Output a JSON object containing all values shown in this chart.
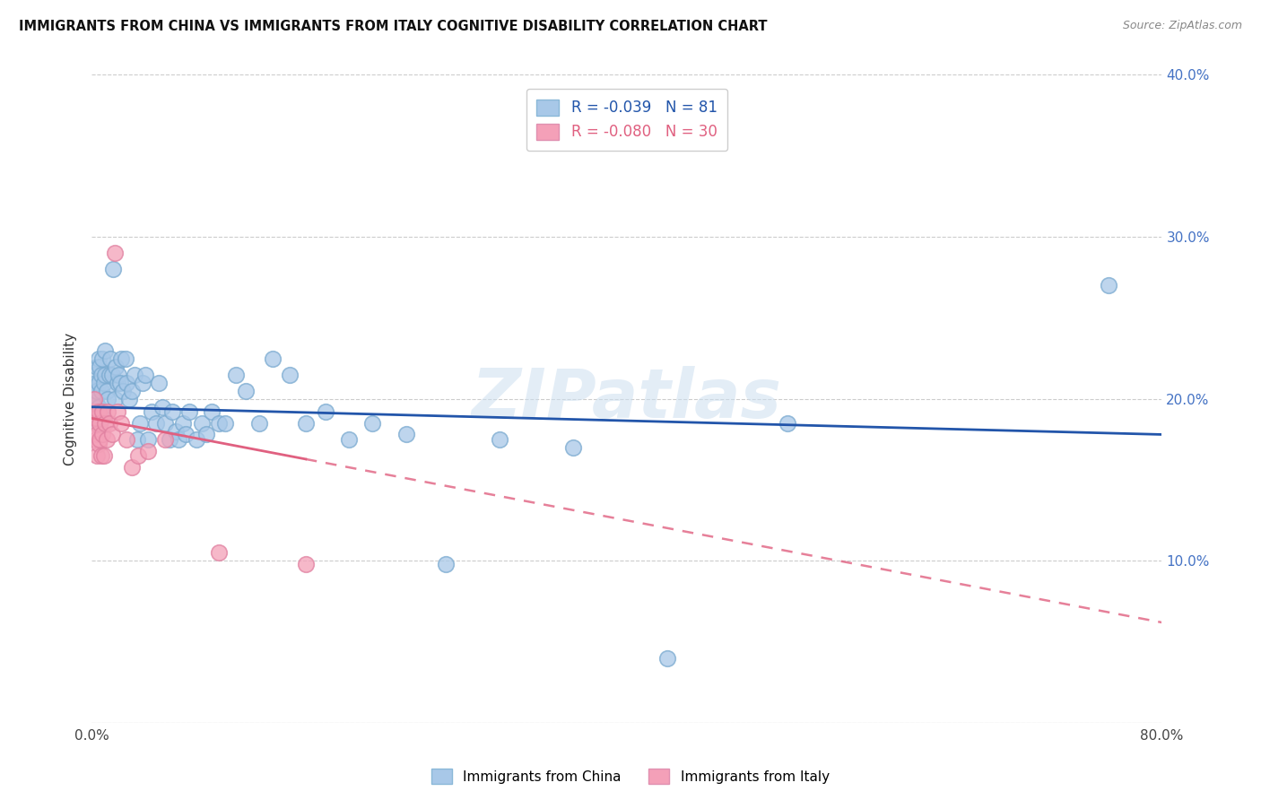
{
  "title": "IMMIGRANTS FROM CHINA VS IMMIGRANTS FROM ITALY COGNITIVE DISABILITY CORRELATION CHART",
  "source": "Source: ZipAtlas.com",
  "ylabel": "Cognitive Disability",
  "xlim": [
    0,
    0.8
  ],
  "ylim": [
    0,
    0.4
  ],
  "china_color": "#a8c8e8",
  "italy_color": "#f4a0b8",
  "china_R": -0.039,
  "china_N": 81,
  "italy_R": -0.08,
  "italy_N": 30,
  "trendline_china_color": "#2255aa",
  "trendline_italy_color": "#e06080",
  "watermark": "ZIPatlas",
  "legend_china": "Immigrants from China",
  "legend_italy": "Immigrants from Italy",
  "china_x": [
    0.001,
    0.001,
    0.002,
    0.002,
    0.002,
    0.003,
    0.003,
    0.003,
    0.004,
    0.004,
    0.004,
    0.005,
    0.005,
    0.005,
    0.006,
    0.006,
    0.007,
    0.007,
    0.007,
    0.008,
    0.008,
    0.009,
    0.01,
    0.01,
    0.011,
    0.012,
    0.013,
    0.014,
    0.015,
    0.016,
    0.017,
    0.018,
    0.019,
    0.02,
    0.021,
    0.022,
    0.023,
    0.025,
    0.026,
    0.028,
    0.03,
    0.032,
    0.034,
    0.036,
    0.038,
    0.04,
    0.042,
    0.045,
    0.048,
    0.05,
    0.053,
    0.055,
    0.058,
    0.06,
    0.063,
    0.065,
    0.068,
    0.07,
    0.073,
    0.078,
    0.082,
    0.086,
    0.09,
    0.095,
    0.1,
    0.108,
    0.115,
    0.125,
    0.135,
    0.148,
    0.16,
    0.175,
    0.192,
    0.21,
    0.235,
    0.265,
    0.305,
    0.36,
    0.43,
    0.52,
    0.76
  ],
  "china_y": [
    0.195,
    0.2,
    0.188,
    0.205,
    0.215,
    0.192,
    0.198,
    0.21,
    0.185,
    0.205,
    0.22,
    0.195,
    0.21,
    0.225,
    0.185,
    0.22,
    0.192,
    0.205,
    0.215,
    0.188,
    0.225,
    0.21,
    0.215,
    0.23,
    0.205,
    0.2,
    0.215,
    0.225,
    0.215,
    0.28,
    0.2,
    0.22,
    0.21,
    0.215,
    0.21,
    0.225,
    0.205,
    0.225,
    0.21,
    0.2,
    0.205,
    0.215,
    0.175,
    0.185,
    0.21,
    0.215,
    0.175,
    0.192,
    0.185,
    0.21,
    0.195,
    0.185,
    0.175,
    0.192,
    0.18,
    0.175,
    0.185,
    0.178,
    0.192,
    0.175,
    0.185,
    0.178,
    0.192,
    0.185,
    0.185,
    0.215,
    0.205,
    0.185,
    0.225,
    0.215,
    0.185,
    0.192,
    0.175,
    0.185,
    0.178,
    0.098,
    0.175,
    0.17,
    0.04,
    0.185,
    0.27
  ],
  "italy_x": [
    0.001,
    0.002,
    0.002,
    0.003,
    0.003,
    0.004,
    0.004,
    0.005,
    0.005,
    0.006,
    0.006,
    0.007,
    0.008,
    0.008,
    0.009,
    0.01,
    0.011,
    0.012,
    0.013,
    0.015,
    0.017,
    0.019,
    0.022,
    0.026,
    0.03,
    0.035,
    0.042,
    0.055,
    0.095,
    0.16
  ],
  "italy_y": [
    0.192,
    0.185,
    0.2,
    0.175,
    0.188,
    0.165,
    0.178,
    0.192,
    0.172,
    0.185,
    0.175,
    0.165,
    0.192,
    0.178,
    0.165,
    0.185,
    0.175,
    0.192,
    0.185,
    0.178,
    0.29,
    0.192,
    0.185,
    0.175,
    0.158,
    0.165,
    0.168,
    0.175,
    0.105,
    0.098
  ],
  "italy_trend_x0": 0.0,
  "italy_trend_x1": 0.8,
  "italy_trend_y0": 0.188,
  "italy_trend_y1": 0.062,
  "china_trend_x0": 0.0,
  "china_trend_x1": 0.8,
  "china_trend_y0": 0.195,
  "china_trend_y1": 0.178
}
